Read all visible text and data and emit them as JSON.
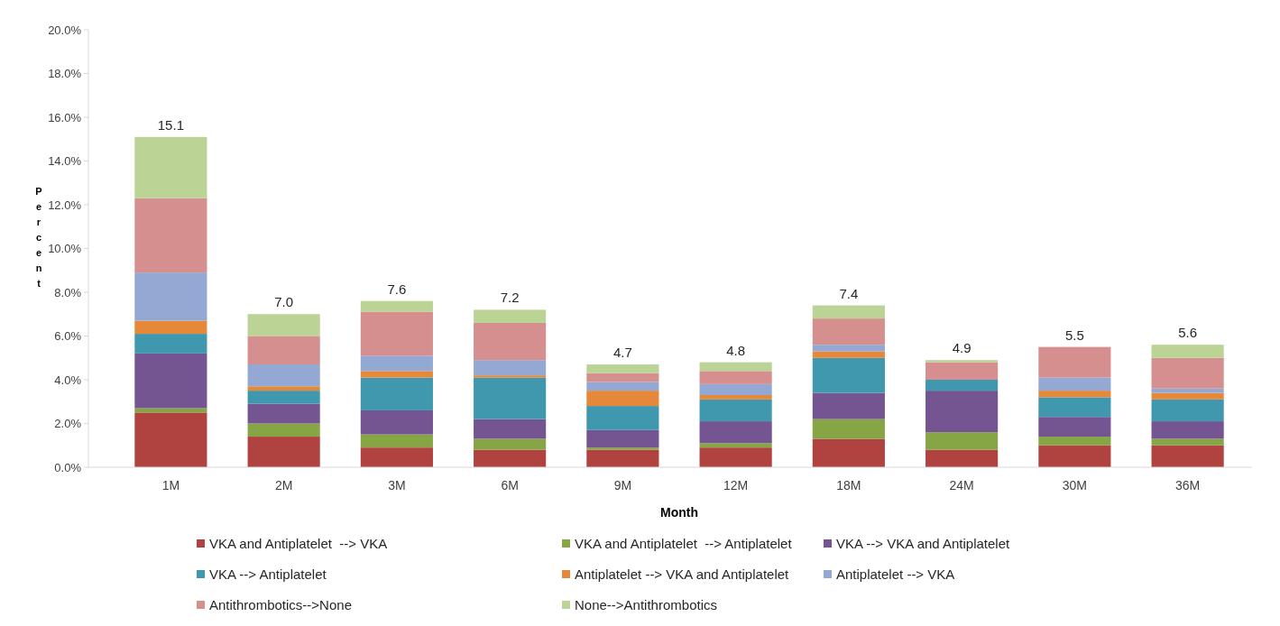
{
  "chart_data": {
    "type": "bar",
    "stacked": true,
    "xlabel": "Month",
    "ylabel": "Percent",
    "categories": [
      "1M",
      "2M",
      "3M",
      "6M",
      "9M",
      "12M",
      "18M",
      "24M",
      "30M",
      "36M"
    ],
    "series": [
      {
        "name": "VKA and Antiplatelet  --> VKA",
        "color": "#b04240",
        "values": [
          2.5,
          1.4,
          0.9,
          0.8,
          0.8,
          0.9,
          1.3,
          0.8,
          1.0,
          1.0
        ]
      },
      {
        "name": "VKA and Antiplatelet  --> Antiplatelet",
        "color": "#86a544",
        "values": [
          0.2,
          0.6,
          0.6,
          0.5,
          0.1,
          0.2,
          0.9,
          0.8,
          0.4,
          0.3
        ]
      },
      {
        "name": "VKA --> VKA and Antiplatelet",
        "color": "#745592",
        "values": [
          2.5,
          0.9,
          1.1,
          0.9,
          0.8,
          1.0,
          1.2,
          1.9,
          0.9,
          0.8
        ]
      },
      {
        "name": "VKA --> Antiplatelet",
        "color": "#3f98ae",
        "values": [
          0.9,
          0.6,
          1.5,
          1.9,
          1.1,
          1.0,
          1.6,
          0.5,
          0.9,
          1.0
        ]
      },
      {
        "name": "Antiplatelet --> VKA and Antiplatelet",
        "color": "#e5883a",
        "values": [
          0.6,
          0.2,
          0.3,
          0.1,
          0.7,
          0.2,
          0.3,
          0,
          0.3,
          0.3
        ]
      },
      {
        "name": "Antiplatelet --> VKA",
        "color": "#93a9d3",
        "values": [
          2.2,
          1.0,
          0.7,
          0.7,
          0.4,
          0.5,
          0.3,
          0,
          0.6,
          0.2
        ]
      },
      {
        "name": "Antithrombotics-->None",
        "color": "#d68f8f",
        "values": [
          3.4,
          1.3,
          2.0,
          1.7,
          0.4,
          0.6,
          1.2,
          0.8,
          1.4,
          1.4
        ]
      },
      {
        "name": "None-->Antithrombotics",
        "color": "#bcd396",
        "values": [
          2.8,
          1.0,
          0.5,
          0.6,
          0.4,
          0.4,
          0.6,
          0.1,
          0,
          0.6
        ]
      }
    ],
    "totals": [
      "15.1",
      "7.0",
      "7.6",
      "7.2",
      "4.7",
      "4.8",
      "7.4",
      "4.9",
      "5.5",
      "5.6"
    ],
    "ylim": [
      0,
      20
    ],
    "yticks": [
      {
        "value": 0,
        "label": "0.0%"
      },
      {
        "value": 2,
        "label": "2.0%"
      },
      {
        "value": 4,
        "label": "4.0%"
      },
      {
        "value": 6,
        "label": "6.0%"
      },
      {
        "value": 8,
        "label": "8.0%"
      },
      {
        "value": 10,
        "label": "10.0%"
      },
      {
        "value": 12,
        "label": "12.0%"
      },
      {
        "value": 14,
        "label": "14.0%"
      },
      {
        "value": 16,
        "label": "16.0%"
      },
      {
        "value": 18,
        "label": "18.0%"
      },
      {
        "value": 20,
        "label": "20.0%"
      }
    ],
    "legend": "bottom"
  }
}
